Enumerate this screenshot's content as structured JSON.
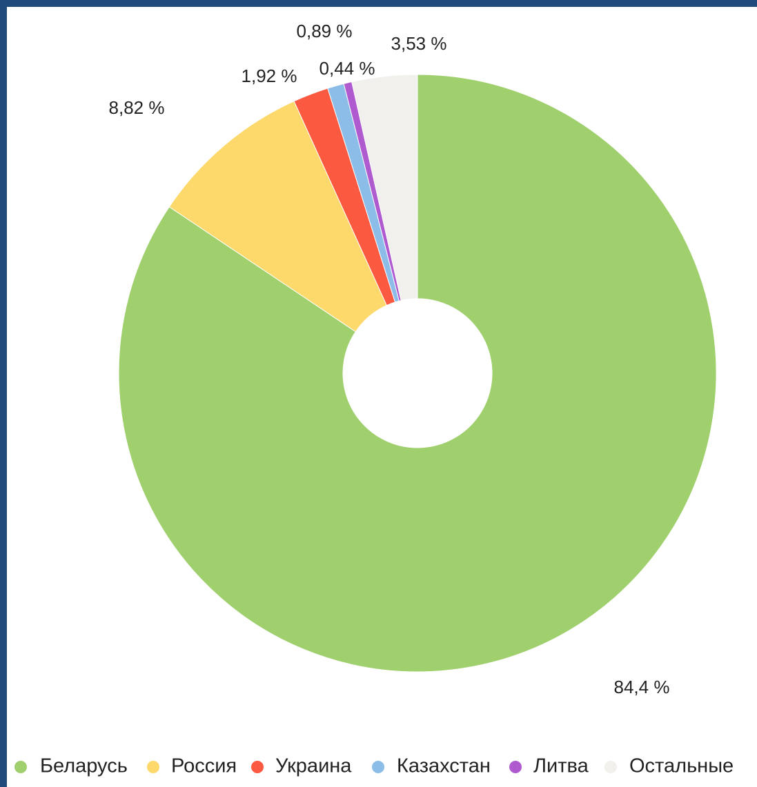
{
  "chart_data": {
    "type": "donut",
    "categories": [
      "Беларусь",
      "Россия",
      "Украина",
      "Казахстан",
      "Литва",
      "Остальные"
    ],
    "values": [
      84.4,
      8.82,
      1.92,
      0.89,
      0.44,
      3.53
    ],
    "value_labels": [
      "84,4 %",
      "8,82 %",
      "1,92 %",
      "0,89 %",
      "0,44 %",
      "3,53 %"
    ],
    "colors": [
      "#a0d06e",
      "#fdd86a",
      "#fb5a40",
      "#8cbde9",
      "#b05ad0",
      "#f2f0ed"
    ],
    "legend": "bottom"
  }
}
